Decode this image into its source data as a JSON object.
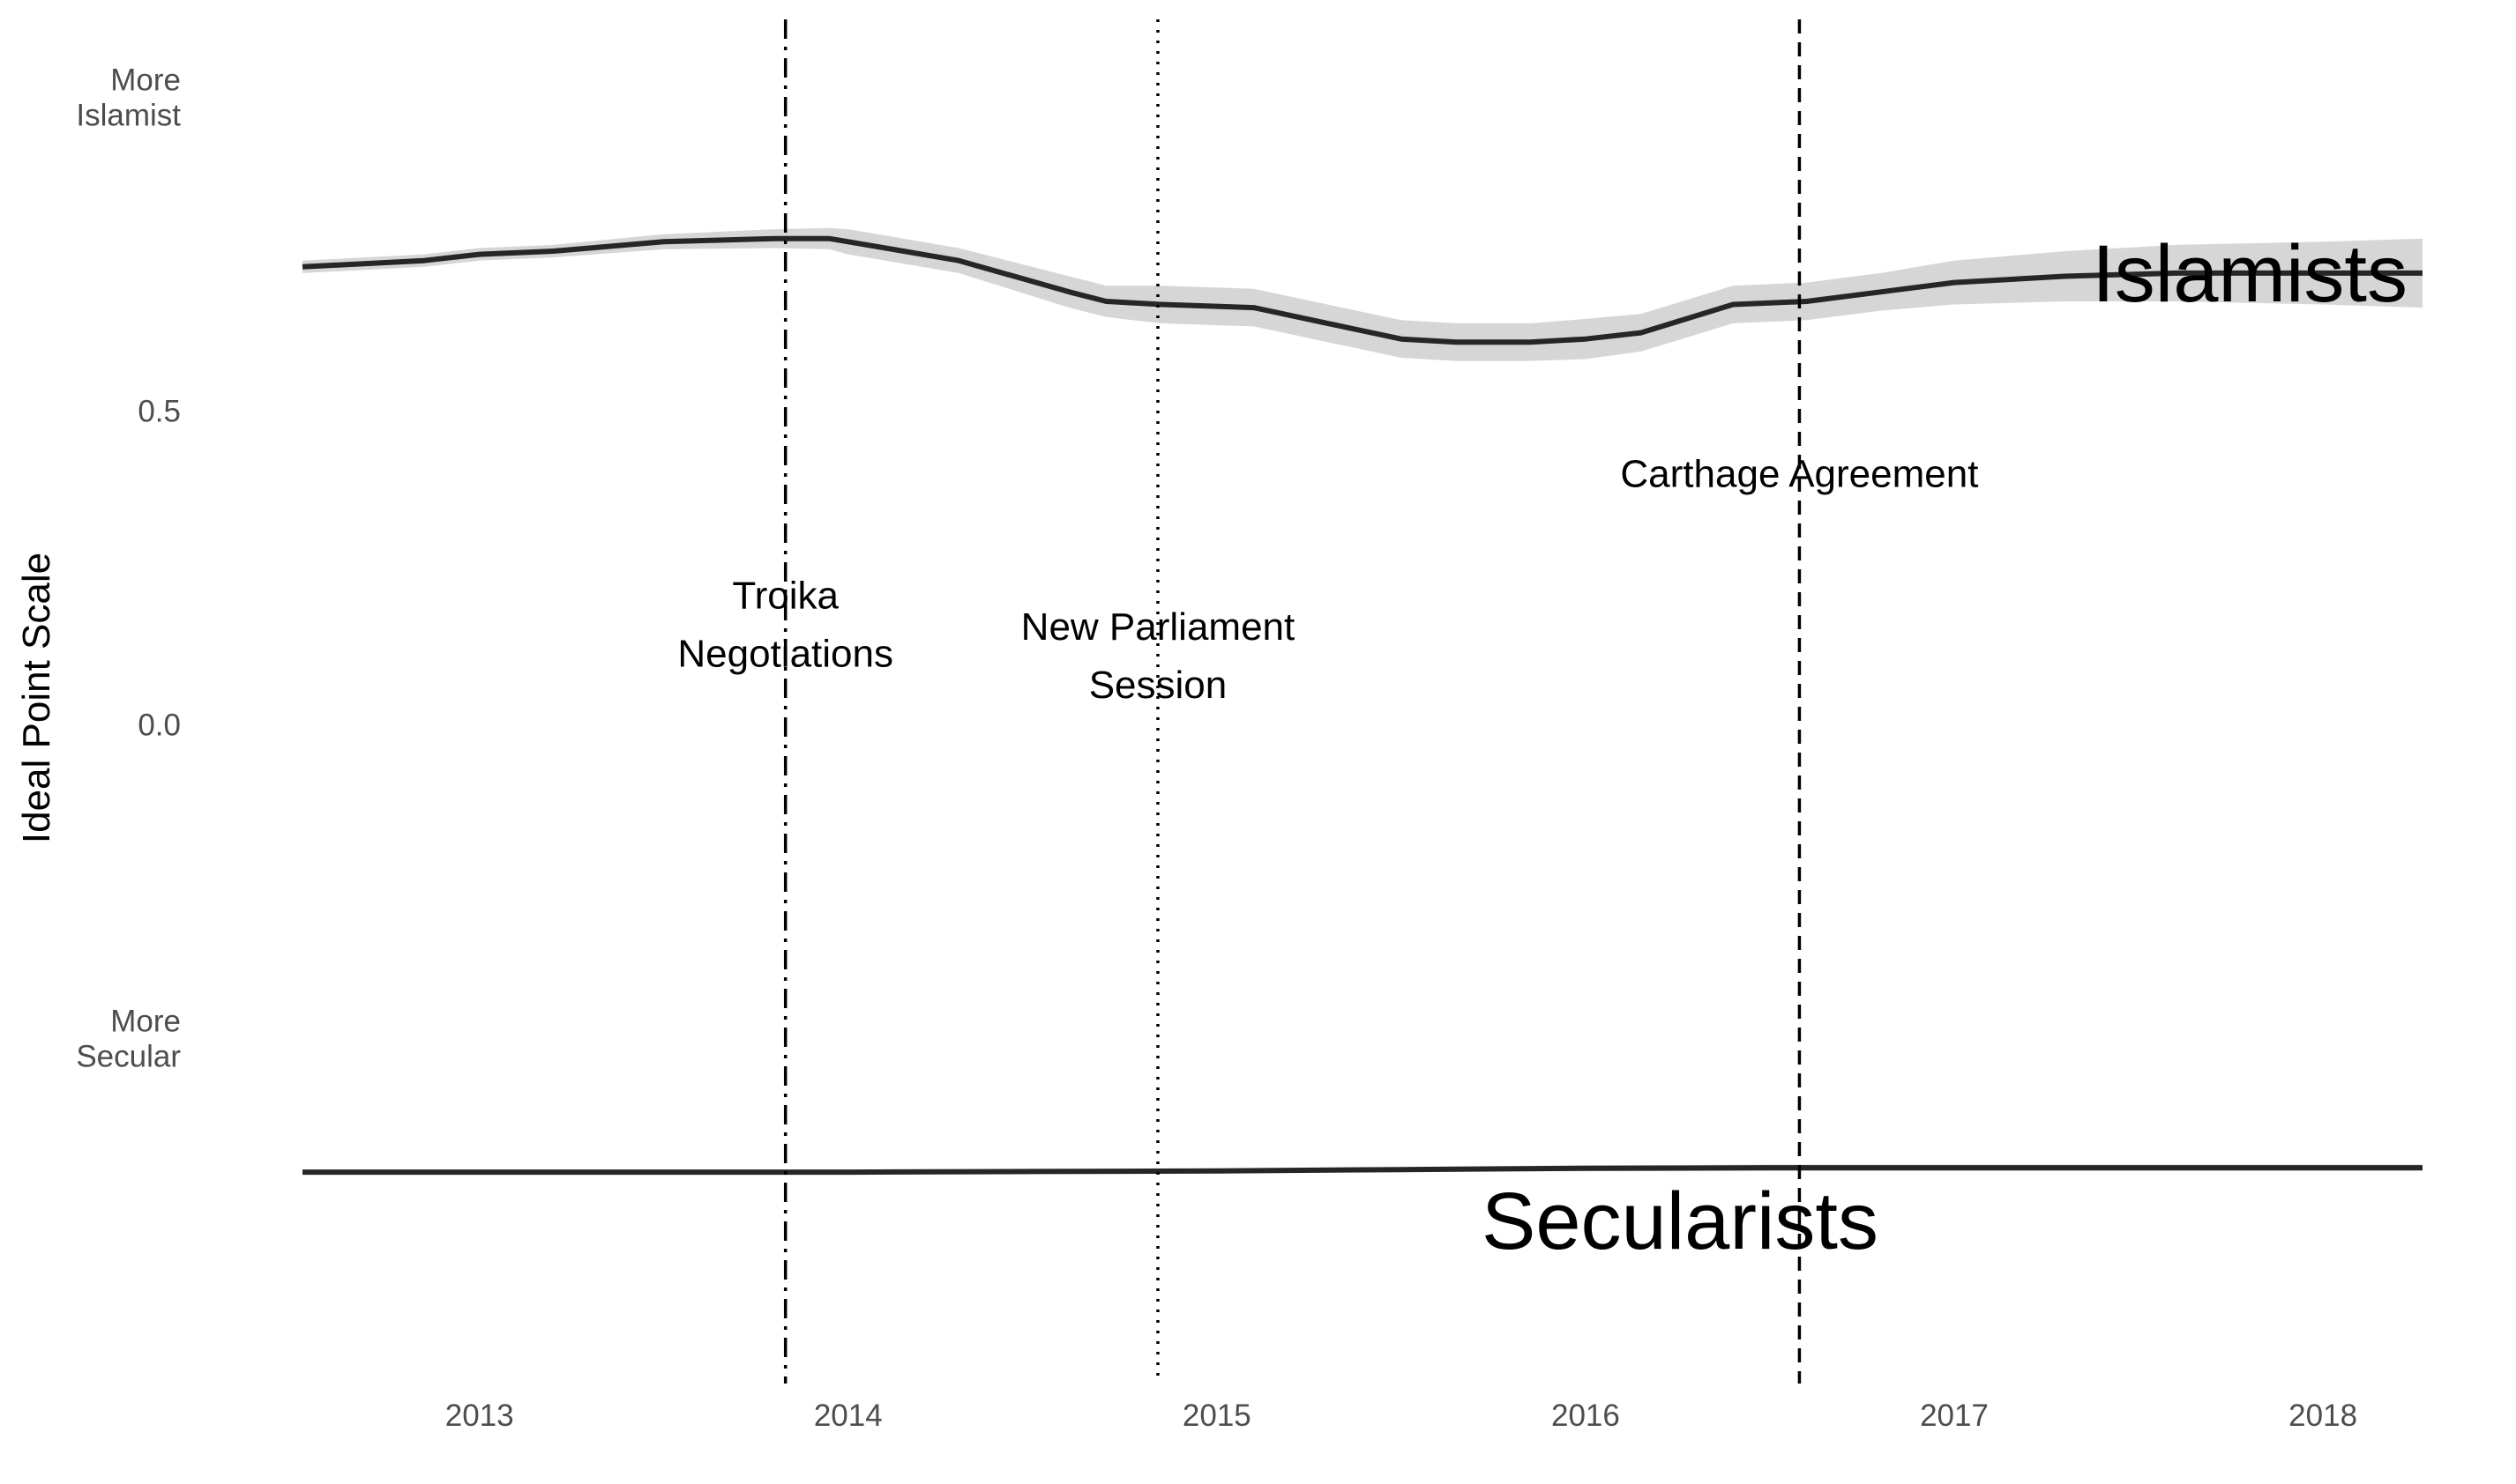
{
  "chart_data": {
    "type": "line",
    "title": "",
    "xlabel": "",
    "ylabel": "Ideal Point Scale",
    "xlim": [
      2012.52,
      2018.27
    ],
    "ylim": [
      -1.05,
      1.05
    ],
    "x_ticks": [
      {
        "value": 2013,
        "label": "2013"
      },
      {
        "value": 2014,
        "label": "2014"
      },
      {
        "value": 2015,
        "label": "2015"
      },
      {
        "value": 2016,
        "label": "2016"
      },
      {
        "value": 2017,
        "label": "2017"
      },
      {
        "value": 2018,
        "label": "2018"
      }
    ],
    "y_ticks": [
      {
        "value": 1.0,
        "label": "More\nIslamist"
      },
      {
        "value": 0.5,
        "label": "0.5"
      },
      {
        "value": 0.0,
        "label": "0.0"
      },
      {
        "value": -0.5,
        "label": "More\nSecular"
      }
    ],
    "grid": false,
    "legend": "none",
    "series": [
      {
        "name": "Islamists",
        "color": "#262626",
        "band_color": "#d6d6d6",
        "x": [
          2012.52,
          2012.85,
          2013.0,
          2013.2,
          2013.5,
          2013.8,
          2013.95,
          2014.0,
          2014.3,
          2014.6,
          2014.7,
          2014.85,
          2015.1,
          2015.3,
          2015.5,
          2015.65,
          2015.85,
          2016.0,
          2016.15,
          2016.4,
          2016.6,
          2016.8,
          2017.0,
          2017.3,
          2017.6,
          2018.0,
          2018.27
        ],
        "y": [
          0.73,
          0.74,
          0.75,
          0.755,
          0.77,
          0.775,
          0.775,
          0.77,
          0.74,
          0.69,
          0.675,
          0.67,
          0.665,
          0.64,
          0.615,
          0.61,
          0.61,
          0.615,
          0.625,
          0.67,
          0.675,
          0.69,
          0.705,
          0.715,
          0.72,
          0.72,
          0.72
        ],
        "lower": [
          0.72,
          0.73,
          0.74,
          0.745,
          0.758,
          0.76,
          0.758,
          0.75,
          0.72,
          0.665,
          0.65,
          0.64,
          0.635,
          0.61,
          0.585,
          0.58,
          0.58,
          0.583,
          0.595,
          0.64,
          0.645,
          0.66,
          0.67,
          0.675,
          0.675,
          0.67,
          0.665
        ],
        "upper": [
          0.74,
          0.75,
          0.76,
          0.765,
          0.782,
          0.79,
          0.792,
          0.79,
          0.76,
          0.715,
          0.7,
          0.7,
          0.695,
          0.67,
          0.645,
          0.64,
          0.64,
          0.647,
          0.655,
          0.7,
          0.705,
          0.72,
          0.74,
          0.755,
          0.765,
          0.77,
          0.775
        ]
      },
      {
        "name": "Secularists",
        "color": "#262626",
        "band_color": "#d6d6d6",
        "x": [
          2012.52,
          2013.5,
          2014.0,
          2014.5,
          2015.0,
          2015.5,
          2016.0,
          2016.5,
          2017.0,
          2017.5,
          2018.0,
          2018.27
        ],
        "y": [
          -0.713,
          -0.713,
          -0.713,
          -0.712,
          -0.711,
          -0.709,
          -0.707,
          -0.706,
          -0.706,
          -0.706,
          -0.706,
          -0.706
        ],
        "lower": [
          -0.716,
          -0.716,
          -0.716,
          -0.715,
          -0.714,
          -0.712,
          -0.711,
          -0.711,
          -0.711,
          -0.711,
          -0.711,
          -0.711
        ],
        "upper": [
          -0.71,
          -0.71,
          -0.71,
          -0.709,
          -0.708,
          -0.705,
          -0.702,
          -0.701,
          -0.701,
          -0.701,
          -0.701,
          -0.701
        ]
      }
    ],
    "events": [
      {
        "date": 2013.83,
        "label_lines": [
          "Troika",
          "Negotiations"
        ],
        "line_style": "dashdot",
        "label_y": 0.16
      },
      {
        "date": 2014.84,
        "label_lines": [
          "New Parliament",
          "Session"
        ],
        "line_style": "dotted",
        "label_y": 0.11
      },
      {
        "date": 2016.58,
        "label_lines": [
          "Carthage Agreement"
        ],
        "line_style": "dashed",
        "label_y": 0.4
      }
    ]
  }
}
